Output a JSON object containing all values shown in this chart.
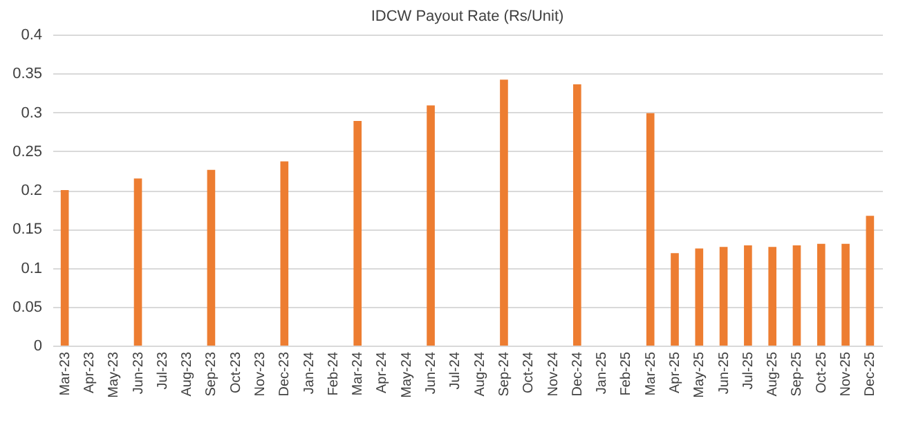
{
  "chart_data": {
    "type": "bar",
    "title": "IDCW Payout Rate  (Rs/Unit)",
    "categories": [
      "Mar-23",
      "Apr-23",
      "May-23",
      "Jun-23",
      "Jul-23",
      "Aug-23",
      "Sep-23",
      "Oct-23",
      "Nov-23",
      "Dec-23",
      "Jan-24",
      "Feb-24",
      "Mar-24",
      "Apr-24",
      "May-24",
      "Jun-24",
      "Jul-24",
      "Aug-24",
      "Sep-24",
      "Oct-24",
      "Nov-24",
      "Dec-24",
      "Jan-25",
      "Feb-25",
      "Mar-25",
      "Apr-25",
      "May-25",
      "Jun-25",
      "Jul-25",
      "Aug-25",
      "Sep-25",
      "Oct-25",
      "Nov-25",
      "Dec-25"
    ],
    "values": [
      0.2,
      null,
      null,
      0.215,
      null,
      null,
      0.226,
      null,
      null,
      0.237,
      null,
      null,
      0.289,
      null,
      null,
      0.309,
      null,
      null,
      0.342,
      null,
      null,
      0.336,
      null,
      null,
      0.299,
      0.119,
      0.125,
      0.127,
      0.129,
      0.127,
      0.129,
      0.131,
      0.131,
      0.167
    ],
    "color": "#ed7d31",
    "ylim": [
      0,
      0.4
    ],
    "yticks": [
      0,
      0.05,
      0.1,
      0.15,
      0.2,
      0.25,
      0.3,
      0.35,
      0.4
    ],
    "grid": "y"
  }
}
